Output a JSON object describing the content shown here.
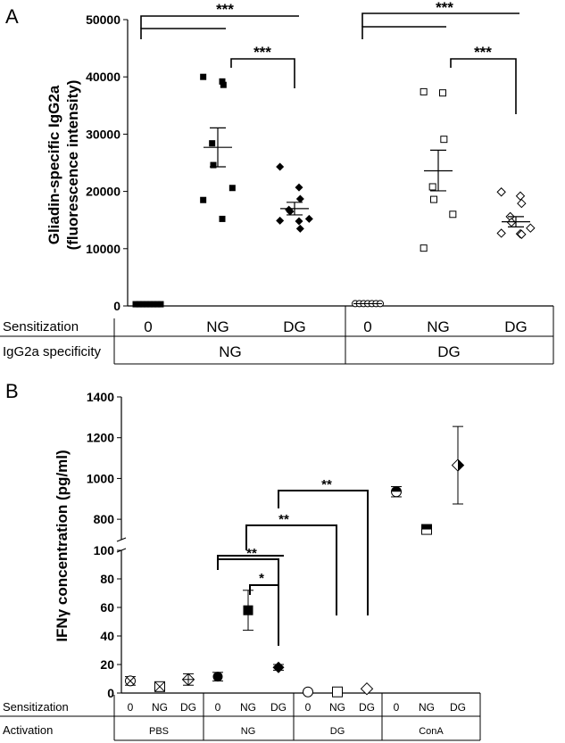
{
  "chart_data": [
    {
      "panel_label": "A",
      "type": "scatter",
      "ylabel_line1": "Gliadin-specific IgG2a",
      "ylabel_line2": "(fluorescence intensity)",
      "ylim": [
        0,
        50000
      ],
      "yticks": [
        "0",
        "10000",
        "20000",
        "30000",
        "40000",
        "50000"
      ],
      "ytick_values": [
        0,
        10000,
        20000,
        30000,
        40000,
        50000
      ],
      "row1_label": "Sensitization",
      "row2_label": "IgG2a specificity",
      "categories": [
        "0",
        "NG",
        "DG",
        "0",
        "NG",
        "DG"
      ],
      "group_labels": [
        "NG",
        "DG"
      ],
      "series": [
        {
          "marker": "filled-square",
          "points": [
            300,
            300,
            300,
            300,
            300,
            300,
            300,
            300
          ],
          "mean": 400
        },
        {
          "marker": "filled-square",
          "points": [
            40000,
            39200,
            38600,
            28400,
            24600,
            20600,
            18500,
            15200
          ],
          "mean": 27700,
          "sem": [
            24300,
            31100
          ]
        },
        {
          "marker": "filled-diamond",
          "points": [
            24300,
            20700,
            18700,
            16800,
            16500,
            15200,
            14900,
            14800,
            13500
          ],
          "mean": 17000,
          "sem": [
            15900,
            18100
          ]
        },
        {
          "marker": "open-circle",
          "points": [
            400,
            400,
            400,
            400,
            400,
            400,
            400
          ],
          "mean": 400
        },
        {
          "marker": "open-square",
          "points": [
            37400,
            37200,
            29100,
            20800,
            18600,
            16000,
            10100
          ],
          "mean": 23600,
          "sem": [
            20100,
            27200
          ]
        },
        {
          "marker": "open-diamond",
          "points": [
            19900,
            19200,
            17900,
            15600,
            14600,
            13600,
            12700,
            12600,
            12500
          ],
          "mean": 14700,
          "sem": [
            13800,
            15600
          ]
        }
      ],
      "significance": [
        "***",
        "***",
        "***",
        "***"
      ]
    },
    {
      "panel_label": "B",
      "type": "scatter",
      "ylabel": "IFNγ concentration (pg/ml)",
      "ylim_lower": [
        0,
        100
      ],
      "ylim_upper": [
        700,
        1400
      ],
      "yticks_lower": [
        "0",
        "20",
        "40",
        "60",
        "80",
        "100"
      ],
      "yticks_upper": [
        "800",
        "1000",
        "1200",
        "1400"
      ],
      "row1_label": "Sensitization",
      "row2_label": "Activation",
      "categories": [
        "0",
        "NG",
        "DG",
        "0",
        "NG",
        "DG",
        "0",
        "NG",
        "DG",
        "0",
        "NG",
        "DG"
      ],
      "group_labels": [
        "PBS",
        "NG",
        "DG",
        "ConA"
      ],
      "points": [
        {
          "group": "PBS",
          "sens": "0",
          "marker": "circle-x",
          "value": 8.5,
          "err": 3
        },
        {
          "group": "PBS",
          "sens": "NG",
          "marker": "square-x",
          "value": 4.5,
          "err": 2
        },
        {
          "group": "PBS",
          "sens": "DG",
          "marker": "diamond-plus",
          "value": 9.5,
          "err": 4
        },
        {
          "group": "NG",
          "sens": "0",
          "marker": "filled-circle",
          "value": 11.5,
          "err": 3
        },
        {
          "group": "NG",
          "sens": "NG",
          "marker": "filled-square",
          "value": 58,
          "err": 14
        },
        {
          "group": "NG",
          "sens": "DG",
          "marker": "filled-diamond",
          "value": 18,
          "err": 2
        },
        {
          "group": "DG",
          "sens": "0",
          "marker": "open-circle",
          "value": 0.8,
          "err": 0
        },
        {
          "group": "DG",
          "sens": "NG",
          "marker": "open-square",
          "value": 0.8,
          "err": 0
        },
        {
          "group": "DG",
          "sens": "DG",
          "marker": "open-diamond",
          "value": 3,
          "err": 0
        },
        {
          "group": "ConA",
          "sens": "0",
          "marker": "half-circle",
          "value": 935,
          "err": 25
        },
        {
          "group": "ConA",
          "sens": "NG",
          "marker": "half-square",
          "value": 750,
          "err": 20
        },
        {
          "group": "ConA",
          "sens": "DG",
          "marker": "half-diamond",
          "value": 1065,
          "err": 190
        }
      ],
      "significance": [
        "**",
        "*",
        "**",
        "**"
      ]
    }
  ]
}
